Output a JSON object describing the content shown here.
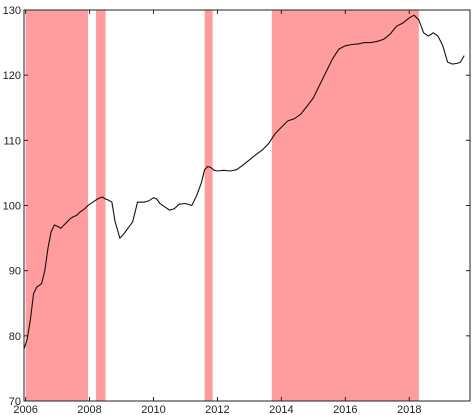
{
  "chart_data": {
    "type": "line",
    "title": "",
    "xlabel": "",
    "ylabel": "",
    "xlim": [
      2005.95,
      2019.9
    ],
    "ylim": [
      70,
      130
    ],
    "x_ticks": [
      2006,
      2008,
      2010,
      2012,
      2014,
      2016,
      2018
    ],
    "x_tick_labels": [
      "2006",
      "2008",
      "2010",
      "2012",
      "2014",
      "2016",
      "2018"
    ],
    "y_ticks": [
      70,
      80,
      90,
      100,
      110,
      120,
      130
    ],
    "y_tick_labels": [
      "70",
      "80",
      "90",
      "100",
      "110",
      "120",
      "130"
    ],
    "grid": false,
    "shaded_periods": [
      [
        2006.0,
        2007.95
      ],
      [
        2008.2,
        2008.5
      ],
      [
        2011.6,
        2011.85
      ],
      [
        2013.7,
        2018.3
      ]
    ],
    "series": [
      {
        "name": "",
        "x": [
          2005.95,
          2006.05,
          2006.15,
          2006.25,
          2006.35,
          2006.5,
          2006.6,
          2006.7,
          2006.8,
          2006.9,
          2007.0,
          2007.1,
          2007.2,
          2007.3,
          2007.4,
          2007.5,
          2007.6,
          2007.7,
          2007.85,
          2007.95,
          2008.1,
          2008.25,
          2008.4,
          2008.5,
          2008.6,
          2008.7,
          2008.8,
          2008.95,
          2009.05,
          2009.2,
          2009.35,
          2009.5,
          2009.7,
          2009.85,
          2010.0,
          2010.1,
          2010.2,
          2010.35,
          2010.5,
          2010.65,
          2010.8,
          2011.0,
          2011.2,
          2011.35,
          2011.5,
          2011.6,
          2011.7,
          2011.8,
          2011.9,
          2012.0,
          2012.2,
          2012.4,
          2012.6,
          2012.8,
          2013.0,
          2013.2,
          2013.4,
          2013.6,
          2013.8,
          2014.0,
          2014.2,
          2014.4,
          2014.6,
          2014.8,
          2015.0,
          2015.2,
          2015.4,
          2015.6,
          2015.8,
          2016.0,
          2016.2,
          2016.4,
          2016.6,
          2016.8,
          2017.0,
          2017.2,
          2017.4,
          2017.6,
          2017.8,
          2018.0,
          2018.15,
          2018.3,
          2018.45,
          2018.6,
          2018.75,
          2018.9,
          2019.05,
          2019.2,
          2019.35,
          2019.5,
          2019.6,
          2019.72
        ],
        "values": [
          78.0,
          79.5,
          82.5,
          86.5,
          87.5,
          88.0,
          90.0,
          93.5,
          96.0,
          97.0,
          96.8,
          96.5,
          97.0,
          97.5,
          98.0,
          98.3,
          98.5,
          99.0,
          99.5,
          100.0,
          100.5,
          101.0,
          101.3,
          101.0,
          100.8,
          100.5,
          97.5,
          95.0,
          95.5,
          96.5,
          97.5,
          100.5,
          100.5,
          100.7,
          101.2,
          101.0,
          100.3,
          99.8,
          99.3,
          99.5,
          100.2,
          100.3,
          100.0,
          101.5,
          103.5,
          105.5,
          106.0,
          105.8,
          105.4,
          105.3,
          105.4,
          105.3,
          105.5,
          106.2,
          107.0,
          107.8,
          108.5,
          109.5,
          111.0,
          112.0,
          113.0,
          113.3,
          114.0,
          115.2,
          116.5,
          118.5,
          120.5,
          122.5,
          124.0,
          124.5,
          124.7,
          124.8,
          125.0,
          125.0,
          125.2,
          125.5,
          126.3,
          127.5,
          128.0,
          128.8,
          129.2,
          128.5,
          126.5,
          126.0,
          126.5,
          126.0,
          124.5,
          122.0,
          121.7,
          121.8,
          122.0,
          123.0
        ]
      }
    ]
  },
  "colors": {
    "shade": "#ff9c9e",
    "line": "#111111",
    "axis": "#222222"
  }
}
